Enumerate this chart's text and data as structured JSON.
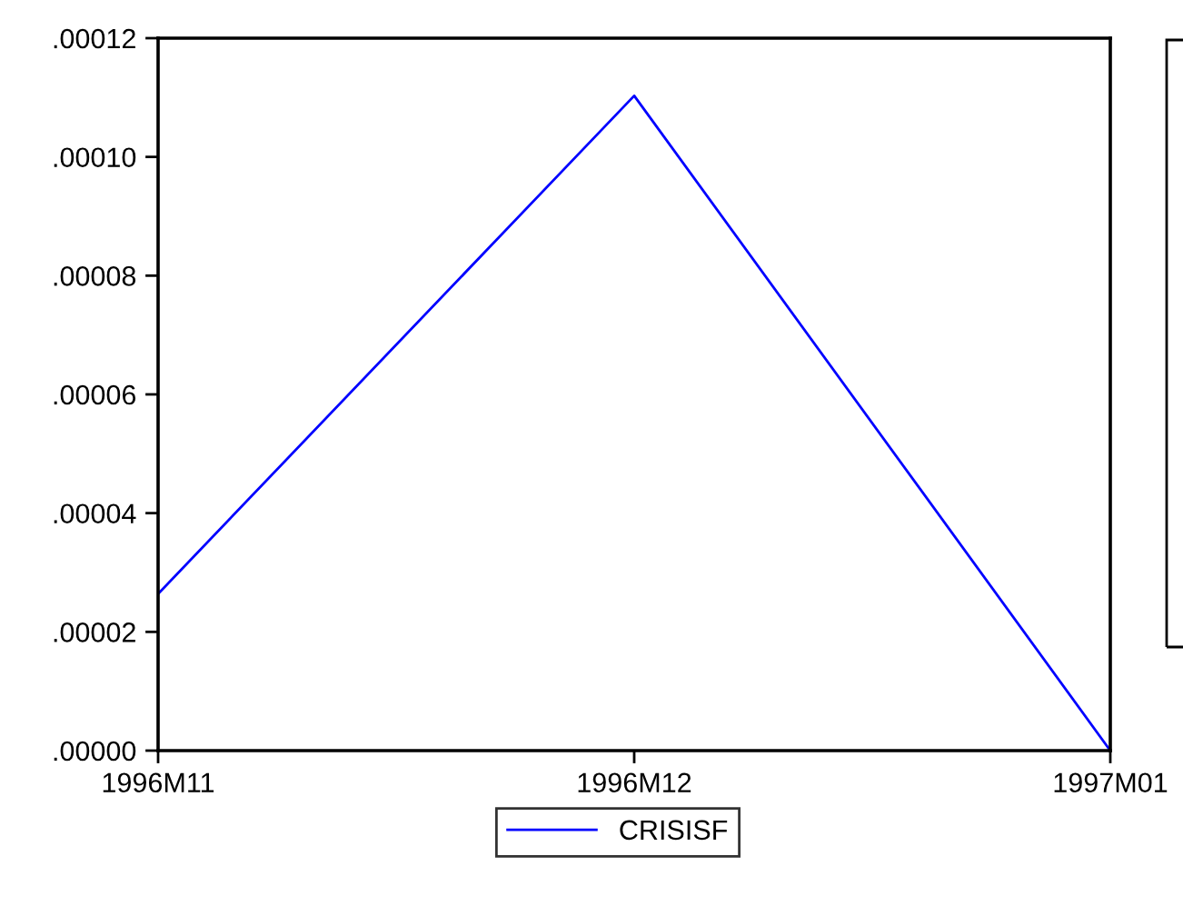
{
  "chart_data": {
    "type": "line",
    "categories": [
      "1996M11",
      "1996M12",
      "1997M01"
    ],
    "series": [
      {
        "name": "CRISISF",
        "color": "#0000ff",
        "values": [
          2.64e-05,
          0.0001103,
          0.0
        ]
      }
    ],
    "ylim": [
      0,
      0.00012
    ],
    "yticks": [
      {
        "value": 0,
        "label": ".00000"
      },
      {
        "value": 2e-05,
        "label": ".00002"
      },
      {
        "value": 4e-05,
        "label": ".00004"
      },
      {
        "value": 6e-05,
        "label": ".00006"
      },
      {
        "value": 8e-05,
        "label": ".00008"
      },
      {
        "value": 0.0001,
        "label": ".00010"
      },
      {
        "value": 0.00012,
        "label": ".00012"
      }
    ],
    "legend": "bottom",
    "grid": false,
    "marker": "none",
    "line_style": "solid"
  }
}
